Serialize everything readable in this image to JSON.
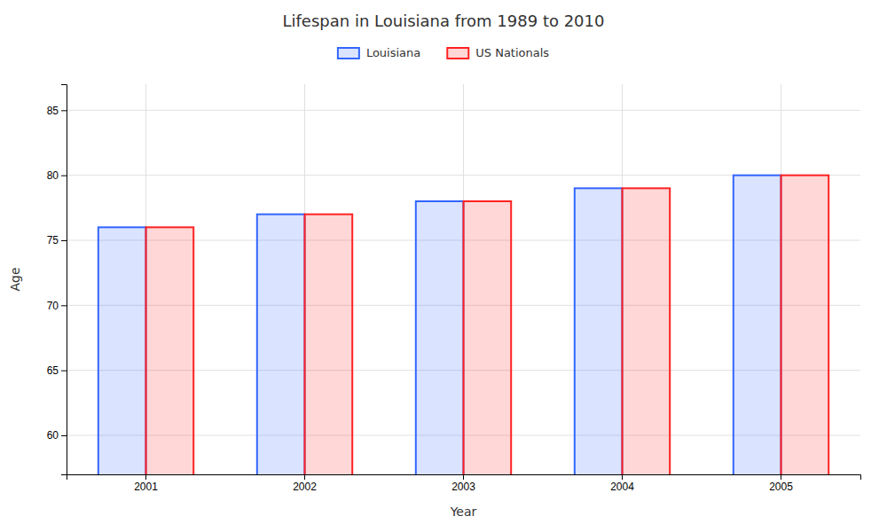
{
  "chart_data": {
    "type": "bar",
    "title": "Lifespan in Louisiana from 1989 to 2010",
    "x_label": "Year",
    "y_label": "Age",
    "categories": [
      "2001",
      "2002",
      "2003",
      "2004",
      "2005"
    ],
    "series": [
      {
        "name": "Louisiana",
        "color": "#3366ff",
        "values": [
          76,
          77,
          78,
          79,
          80
        ]
      },
      {
        "name": "US Nationals",
        "color": "#ff2222",
        "values": [
          76,
          77,
          78,
          79,
          80
        ]
      }
    ],
    "ylim": [
      57,
      87
    ],
    "yticks": [
      60,
      65,
      70,
      75,
      80,
      85
    ],
    "grid": true,
    "legend": "top"
  }
}
